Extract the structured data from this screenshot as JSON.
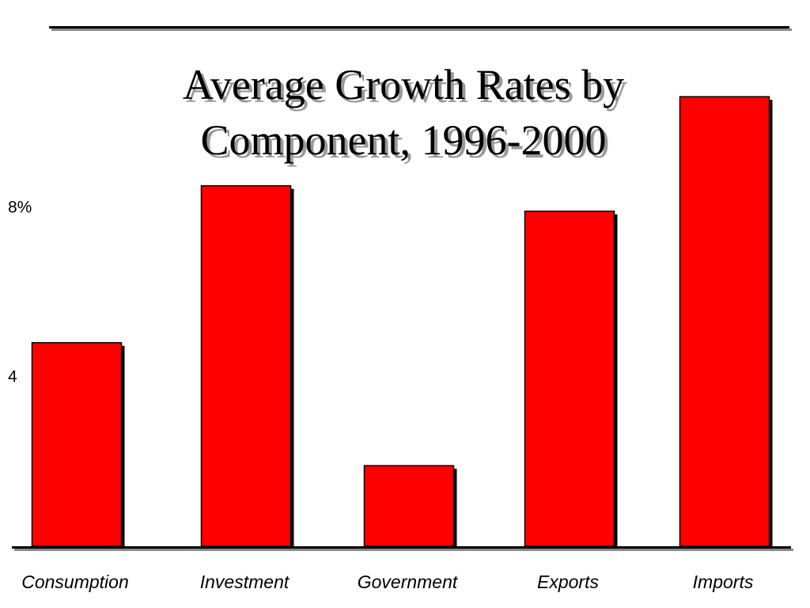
{
  "title_lines": [
    "Average Growth Rates by",
    "Component, 1996-2000"
  ],
  "colors": {
    "bar": "#ff0000",
    "bar_border": "#000000",
    "shadow": "#000000"
  },
  "chart_data": {
    "type": "bar",
    "title": "Average Growth Rates by Component, 1996-2000",
    "xlabel": "",
    "ylabel": "",
    "categories": [
      "Consumption",
      "Investment",
      "Government",
      "Exports",
      "Imports"
    ],
    "values": [
      4.8,
      8.5,
      1.9,
      7.9,
      10.6
    ],
    "ylim": [
      0,
      11.2
    ],
    "yticks": [
      {
        "value": 4,
        "label": "4"
      },
      {
        "value": 8,
        "label": "8%"
      }
    ],
    "grid": false,
    "legend": "none"
  }
}
